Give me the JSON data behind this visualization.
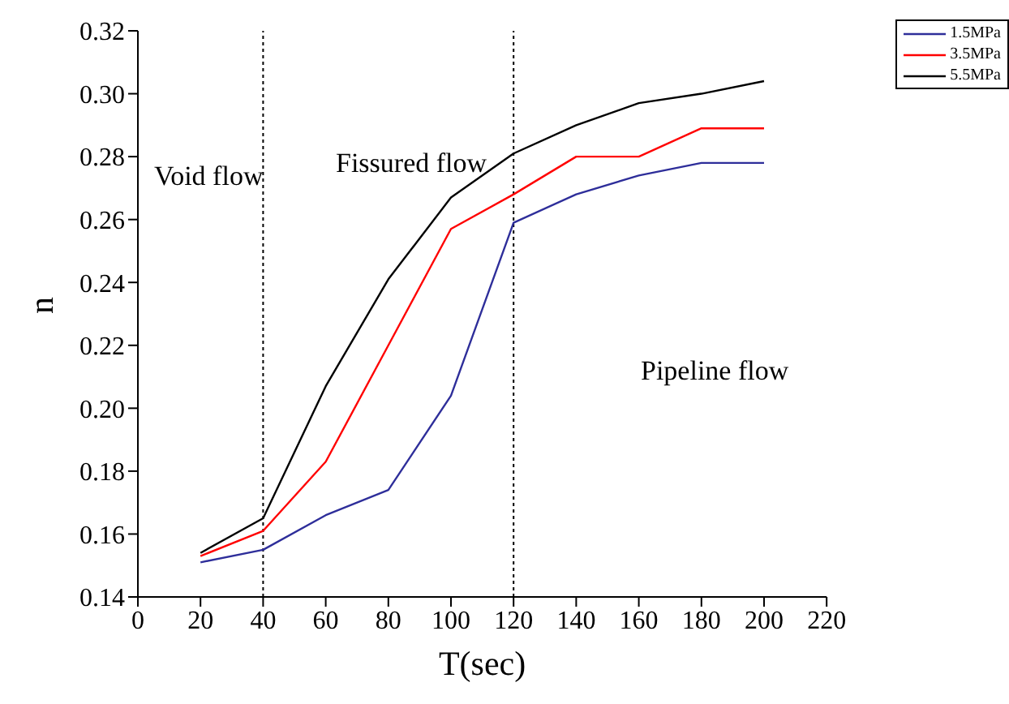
{
  "chart_data": {
    "type": "line",
    "xlabel": "T(sec)",
    "ylabel": "n",
    "x": [
      20,
      40,
      60,
      80,
      100,
      120,
      140,
      160,
      180,
      200
    ],
    "series": [
      {
        "name": "1.5MPa",
        "color": "#2e2e9a",
        "values": [
          0.151,
          0.155,
          0.166,
          0.174,
          0.204,
          0.259,
          0.268,
          0.274,
          0.278,
          0.278
        ]
      },
      {
        "name": "3.5MPa",
        "color": "#ff0000",
        "values": [
          0.153,
          0.161,
          0.183,
          0.22,
          0.257,
          0.268,
          0.28,
          0.28,
          0.289,
          0.289
        ]
      },
      {
        "name": "5.5MPa",
        "color": "#000000",
        "values": [
          0.154,
          0.165,
          0.207,
          0.241,
          0.267,
          0.281,
          0.29,
          0.297,
          0.3,
          0.304
        ]
      }
    ],
    "xlim": [
      0,
      220
    ],
    "xticks": [
      0,
      20,
      40,
      60,
      80,
      100,
      120,
      140,
      160,
      180,
      200,
      220
    ],
    "ylim": [
      0.14,
      0.32
    ],
    "yticks": [
      0.14,
      0.16,
      0.18,
      {
        "value": 0.2,
        "label": "0.20"
      },
      0.22,
      0.24,
      0.26,
      0.28,
      {
        "value": 0.3,
        "label": "0.30"
      },
      0.32
    ],
    "ref_lines": [
      {
        "axis": "x",
        "value": 40,
        "color": "#000000",
        "line_style": "dotted"
      },
      {
        "axis": "x",
        "value": 120,
        "color": "#000000",
        "line_style": "dotted"
      }
    ],
    "annotations": [
      "Void flow",
      "Fissured flow",
      "Pipeline flow"
    ],
    "legend": "top right",
    "grid": false,
    "marker": "none",
    "line_style": "solid"
  }
}
